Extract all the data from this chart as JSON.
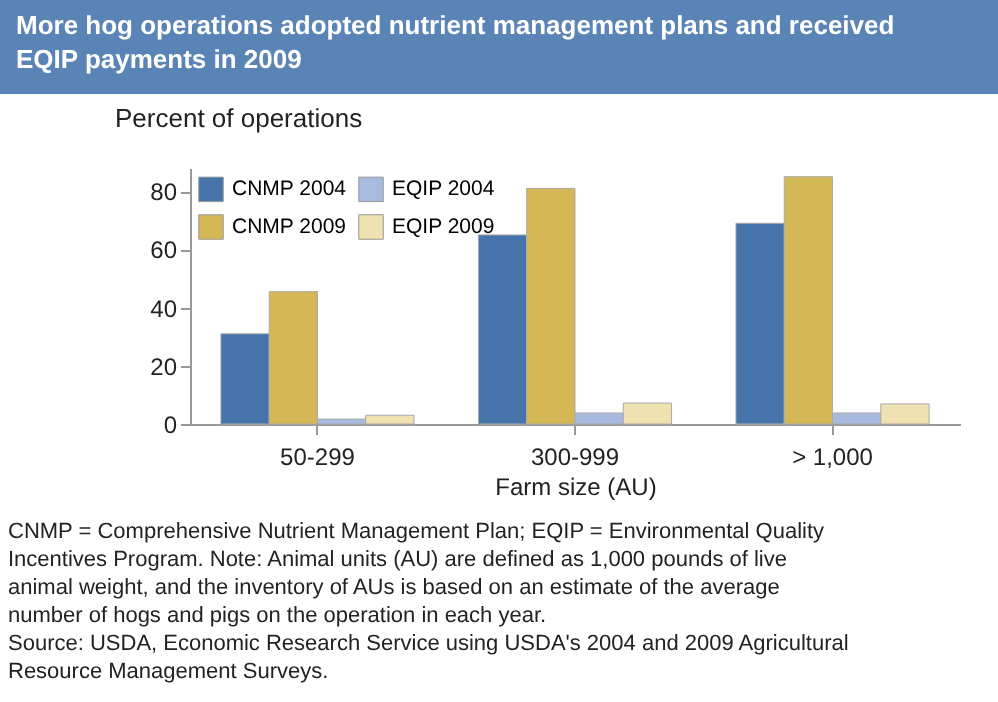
{
  "chart_data": {
    "type": "bar",
    "title": "More hog operations adopted nutrient management plans and received EQIP payments in 2009",
    "ylabel": "Percent of operations",
    "xlabel": "Farm size (AU)",
    "categories": [
      "50-299",
      "300-999",
      "> 1,000"
    ],
    "series": [
      {
        "name": "CNMP 2004",
        "color": "#4674aa",
        "values": [
          31,
          65,
          69
        ]
      },
      {
        "name": "CNMP 2009",
        "color": "#d4b856",
        "values": [
          45.5,
          81,
          85
        ]
      },
      {
        "name": "EQIP 2004",
        "color": "#a8bade",
        "values": [
          1.7,
          3.8,
          3.8
        ]
      },
      {
        "name": "EQIP 2009",
        "color": "#efe1b0",
        "values": [
          3,
          7.2,
          6.9
        ]
      }
    ],
    "ylim": [
      0,
      88
    ],
    "yticks": [
      0,
      20,
      40,
      60,
      80
    ],
    "grid": false,
    "legend": "top left",
    "annotations": [
      "CNMP = Comprehensive Nutrient Management Plan; EQIP = Environmental Quality Incentives Program. Note: Animal units (AU) are defined as 1,000 pounds of live animal weight, and the inventory of AUs is based on an estimate of the average number of hogs and pigs on the operation in each year.",
      "Source: USDA, Economic Research Service using USDA's 2004 and 2009 Agricultural Resource Management Surveys."
    ]
  }
}
